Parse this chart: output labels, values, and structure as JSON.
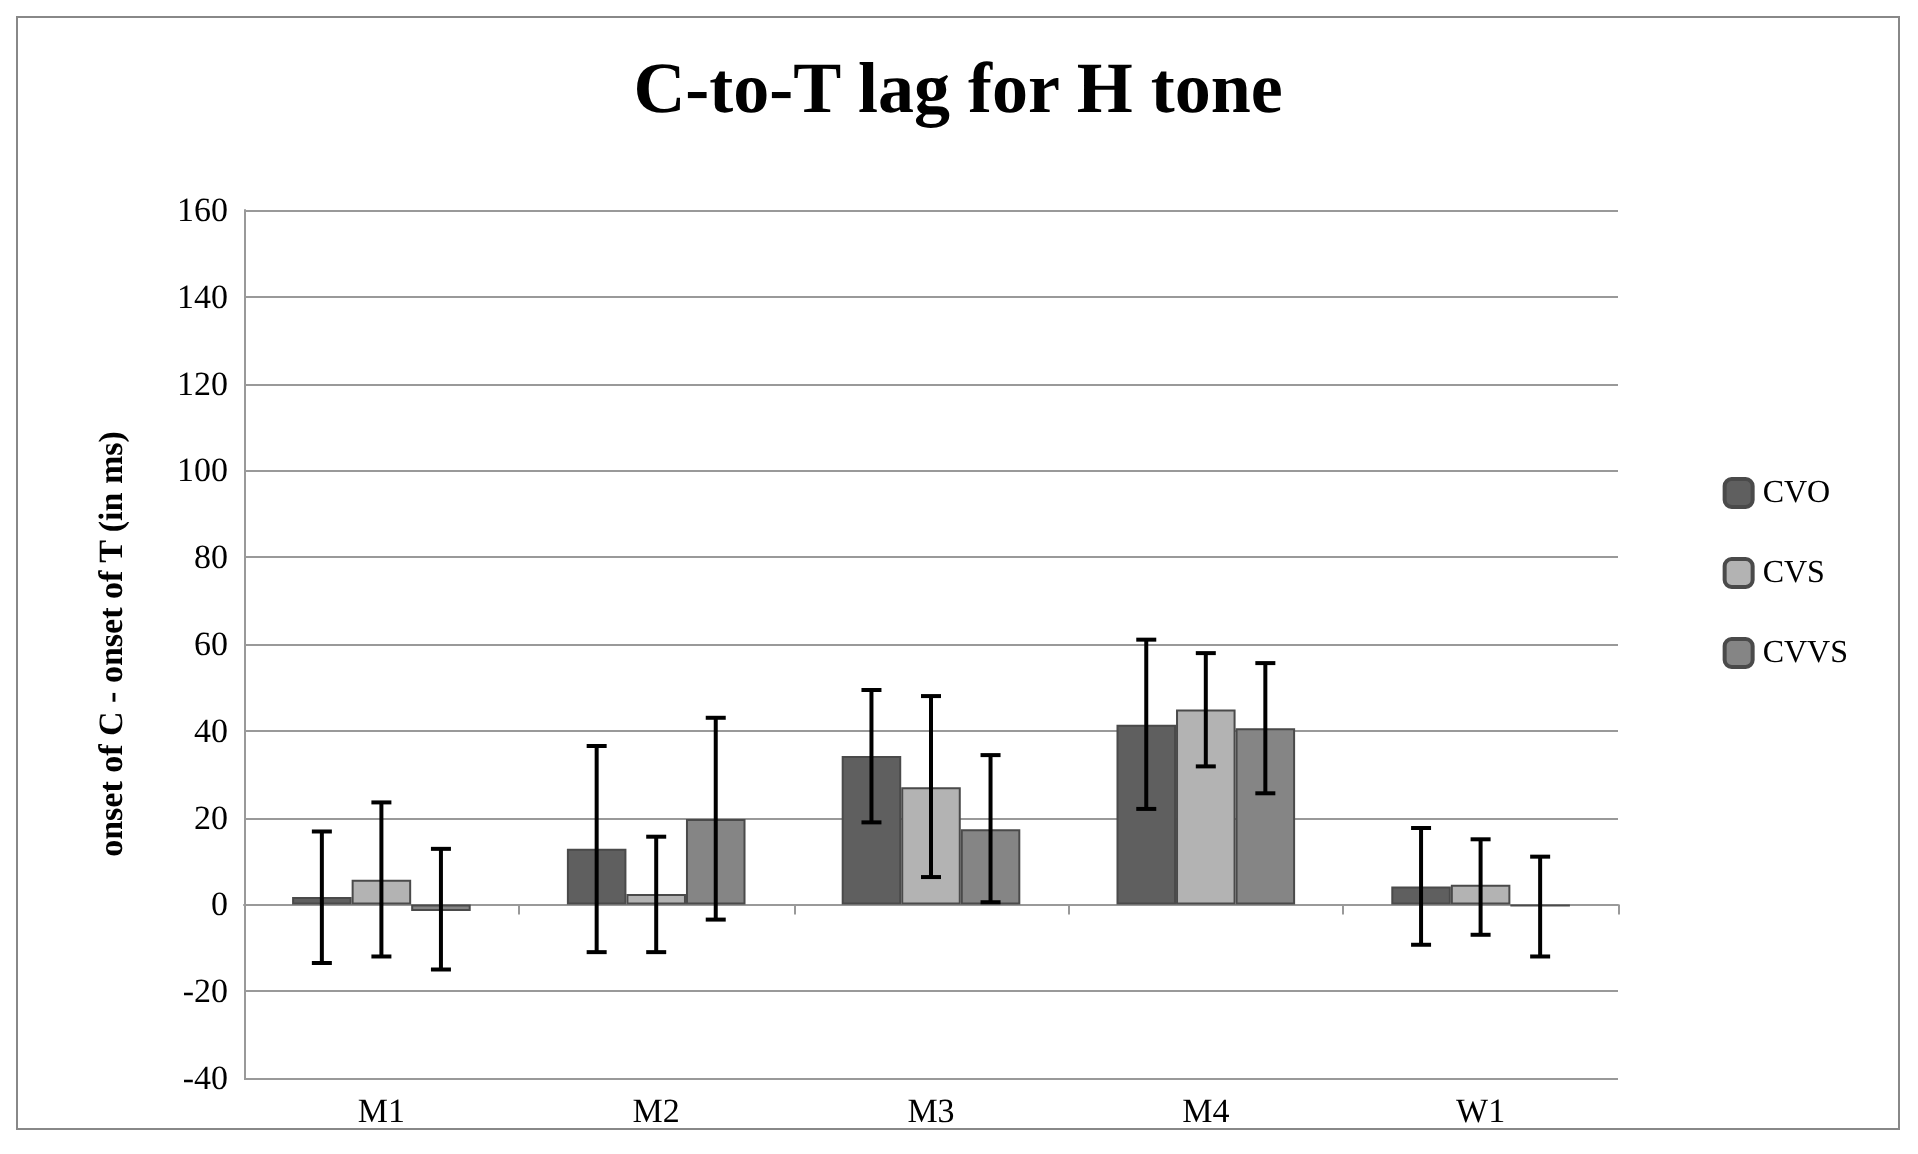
{
  "chart_data": {
    "type": "bar",
    "title": "C-to-T lag for H tone",
    "ylabel": "onset of C - onset of T (in ms)",
    "categories": [
      "M1",
      "M2",
      "M3",
      "M4",
      "W1"
    ],
    "series": [
      {
        "name": "CVO",
        "color": "#5f5f5f",
        "values": [
          1.7,
          12.8,
          34.2,
          41.4,
          4.1
        ],
        "errors": [
          [
            -13.5,
            16.8
          ],
          [
            -11,
            36.5
          ],
          [
            18.9,
            49.4
          ],
          [
            22,
            61
          ],
          [
            -9.3,
            17.6
          ]
        ]
      },
      {
        "name": "CVS",
        "color": "#b3b3b3",
        "values": [
          5.7,
          2.4,
          27,
          44.9,
          4.5
        ],
        "errors": [
          [
            -12,
            23.5
          ],
          [
            -11,
            15.6
          ],
          [
            6.3,
            48
          ],
          [
            31.8,
            57.9
          ],
          [
            -7,
            15
          ]
        ]
      },
      {
        "name": "CVVS",
        "color": "#858585",
        "values": [
          -1.5,
          19.7,
          17.3,
          40.6,
          -0.5
        ],
        "errors": [
          [
            -15,
            12.8
          ],
          [
            -3.5,
            43
          ],
          [
            0.5,
            34.4
          ],
          [
            25.6,
            55.6
          ],
          [
            -12,
            11
          ]
        ]
      }
    ],
    "ylim": [
      -40,
      160
    ],
    "yticks": [
      -40,
      -20,
      0,
      20,
      40,
      60,
      80,
      100,
      120,
      140,
      160
    ],
    "grid": "y",
    "legend": "right"
  }
}
